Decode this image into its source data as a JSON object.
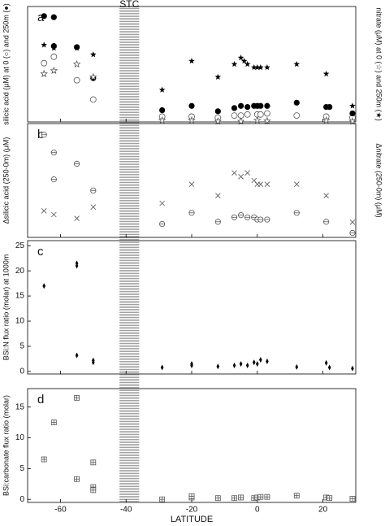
{
  "chart_data": [
    {
      "type": "scatter",
      "panel_label": "a",
      "ylabel": "silicic acid (μM) at 0 (○) and 250m (●)",
      "y2label": "nitrate (μM) at 0 (☆) and 250m (★)",
      "ylim": [
        -3,
        105
      ],
      "y2lim": [
        0,
        36
      ],
      "series": [
        {
          "name": "silicic acid 0m",
          "marker": "open-circle",
          "color": "#555555",
          "x": [
            -65,
            -62,
            -55,
            -50,
            -29,
            -20,
            -12,
            -7,
            -5,
            -3,
            0,
            1,
            3,
            12,
            21,
            29
          ],
          "values": [
            52,
            58,
            36,
            18,
            2,
            2,
            1,
            3,
            3,
            4,
            4,
            4,
            5,
            3,
            2,
            1
          ]
        },
        {
          "name": "silicic acid 250m",
          "marker": "filled-circle",
          "color": "#000000",
          "x": [
            -65,
            -62,
            -62,
            -55,
            -50,
            -29,
            -20,
            -12,
            -7,
            -5,
            -3,
            -1,
            0,
            1,
            3,
            12,
            21,
            22,
            29
          ],
          "values": [
            96,
            95,
            68,
            67,
            38,
            8,
            12,
            7,
            10,
            12,
            11,
            12,
            12,
            12,
            12,
            15,
            11,
            11,
            5
          ]
        },
        {
          "name": "nitrate 0m",
          "marker": "open-star",
          "color": "#555555",
          "axis": "y2",
          "x": [
            -65,
            -62,
            -55,
            -50,
            -29,
            -20,
            -12,
            -5,
            0,
            3,
            21,
            29
          ],
          "values": [
            15,
            16,
            18,
            14,
            0.5,
            0.5,
            0.2,
            0.2,
            0.5,
            0.3,
            0.5,
            0.2
          ]
        },
        {
          "name": "nitrate 250m",
          "marker": "filled-star",
          "color": "#000000",
          "axis": "y2",
          "x": [
            -65,
            -62,
            -55,
            -50,
            -29,
            -20,
            -12,
            -7,
            -5,
            -4,
            -3,
            -1,
            0,
            1,
            3,
            12,
            21,
            29
          ],
          "values": [
            24,
            23,
            23,
            21,
            10,
            19,
            14,
            18,
            20,
            19,
            18,
            17,
            17,
            17,
            17,
            18,
            15,
            5
          ]
        }
      ]
    },
    {
      "type": "scatter",
      "panel_label": "b",
      "ylabel": "Δsilicic acid (250-0m) (μM)",
      "y2label": "Δnitrate (250-0m) (μM)",
      "ylim": [
        -1,
        50
      ],
      "y2lim": [
        0,
        30
      ],
      "series": [
        {
          "name": "Δsilicic acid",
          "marker": "circle-line",
          "color": "#555555",
          "x": [
            -65,
            -62,
            -62,
            -55,
            -50,
            -29,
            -20,
            -12,
            -7,
            -5,
            -3,
            -1,
            0,
            1,
            3,
            12,
            21,
            29
          ],
          "values": [
            45,
            37,
            25,
            32,
            20,
            5,
            10,
            6,
            8,
            9,
            8,
            8,
            7,
            7,
            7,
            10,
            6,
            1
          ]
        },
        {
          "name": "Δnitrate",
          "marker": "x",
          "color": "#555555",
          "axis": "y2",
          "x": [
            -65,
            -62,
            -55,
            -50,
            -29,
            -20,
            -12,
            -7,
            -5,
            -3,
            -1,
            0,
            1,
            3,
            12,
            21,
            29
          ],
          "values": [
            7,
            6,
            5,
            8,
            9,
            14,
            11,
            17,
            16,
            17,
            15,
            14,
            14,
            14,
            14,
            11,
            4
          ]
        }
      ]
    },
    {
      "type": "scatter",
      "panel_label": "c",
      "ylabel": "BSi:N flux ratio (molar) at 1000m",
      "ylim": [
        -0.5,
        26
      ],
      "yticks": [
        0,
        5,
        10,
        15,
        20,
        25
      ],
      "series": [
        {
          "name": "BSi:N",
          "marker": "diamond",
          "color": "#000000",
          "x": [
            -65,
            -55,
            -55,
            -55,
            -50,
            -50,
            -29,
            -20,
            -20,
            -12,
            -7,
            -5,
            -3,
            -1,
            0,
            1,
            3,
            12,
            21,
            22,
            29
          ],
          "values": [
            17,
            21.5,
            21,
            3.2,
            2.2,
            1.8,
            0.8,
            1.2,
            1.5,
            1,
            1.2,
            1.5,
            1.2,
            1.8,
            1.5,
            2.3,
            2,
            0.9,
            1.7,
            0.8,
            0.6
          ]
        }
      ]
    },
    {
      "type": "scatter",
      "panel_label": "d",
      "ylabel": "BSi:carbonate flux ratio (molar)",
      "xlabel": "LATITUDE",
      "xlim": [
        -70,
        30
      ],
      "xticks": [
        -60,
        -40,
        -20,
        0,
        20
      ],
      "ylim": [
        -0.5,
        18
      ],
      "yticks": [
        0,
        5,
        10,
        15
      ],
      "annotation": {
        "text": "STC",
        "xrange": [
          -42,
          -36
        ]
      },
      "series": [
        {
          "name": "BSi:carbonate",
          "marker": "square-plus",
          "color": "#555555",
          "x": [
            -65,
            -62,
            -55,
            -55,
            -50,
            -50,
            -50,
            -29,
            -20,
            -20,
            -12,
            -7,
            -5,
            -1,
            0,
            1,
            3,
            12,
            21,
            22,
            29
          ],
          "values": [
            6.5,
            12.5,
            16.5,
            3.3,
            6,
            2,
            1.5,
            0,
            0.3,
            0.5,
            0.2,
            0.2,
            0.3,
            0.2,
            0.3,
            0.4,
            0.4,
            0.6,
            0.3,
            0.2,
            0.1
          ]
        }
      ]
    }
  ]
}
